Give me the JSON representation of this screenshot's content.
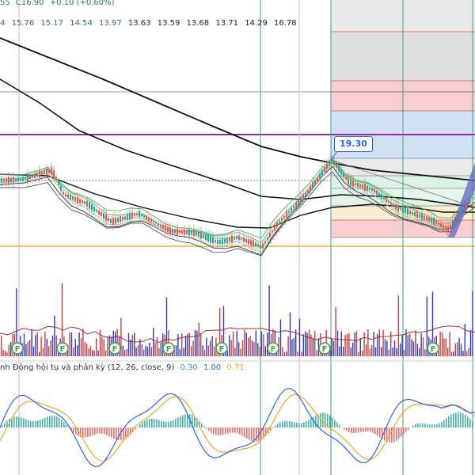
{
  "legend_top": {
    "open_fragment": "55",
    "close_label": "C16.90",
    "change": "+0.10 (+0.60%)"
  },
  "ma_values": [
    "4",
    "15.76",
    "15.17",
    "14.54",
    "13.97",
    "13.63",
    "13.59",
    "13.68",
    "13.71",
    "14.29",
    "16.78"
  ],
  "price_label": "19.30",
  "macd": {
    "title": "nh Động hội tụ và phân kỳ (12, 26, close, 9)",
    "values": [
      "0.30",
      "1.00",
      "0.71"
    ]
  },
  "colors": {
    "macd_line": "#2962ff",
    "signal_line": "#f5a623",
    "hist_up": "#26a69a",
    "hist_down": "#ef5350",
    "up": "#26a69a",
    "down": "#ef5350",
    "fib_red": "#f7c6c8",
    "fib_blue": "#c9dcf5",
    "fib_grey": "#e4e4e4",
    "fib_green": "#d4efe4",
    "purple": "#9c27b0",
    "orange": "#f0b24a"
  },
  "marker_icon": "earnings-F-icon",
  "marker_label": "F",
  "chart_data": {
    "type": "line",
    "title": "",
    "annotations": [
      "19.30"
    ],
    "indicators": [
      "moving averages",
      "volume",
      "MACD (12, 26, close, 9)"
    ]
  }
}
